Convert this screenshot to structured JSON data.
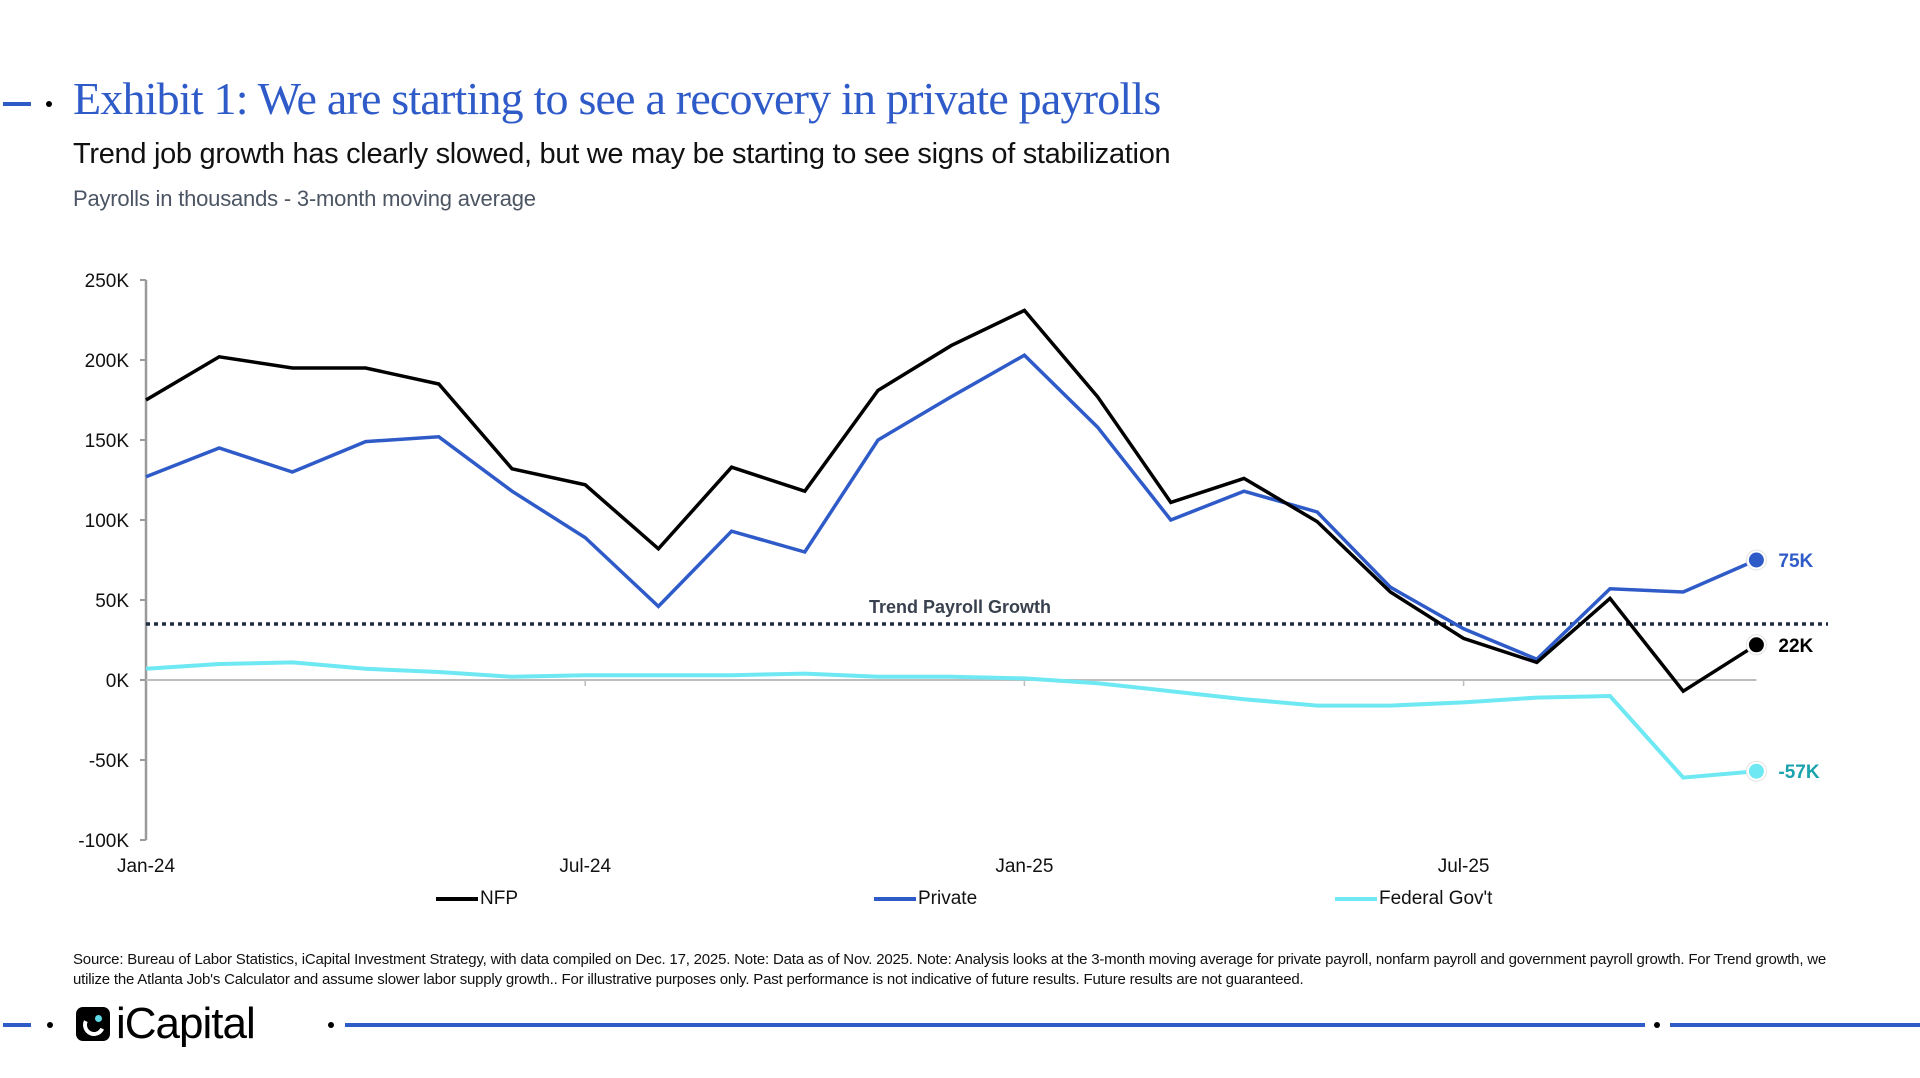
{
  "header": {
    "title": "Exhibit 1: We are starting to see a recovery in private payrolls",
    "subtitle": "Trend job growth has clearly slowed, but we may be starting to see signs of stabilization",
    "unit_note": "Payrolls in thousands - 3-month moving average"
  },
  "colors": {
    "accent": "#2f5bc9",
    "nfp": "#000000",
    "private": "#2f5bc9",
    "federal": "#6ee8f2",
    "federal_label": "#1aa3ad",
    "trend": "#1f2a44",
    "axis": "#9a9a9a"
  },
  "chart_data": {
    "type": "line",
    "title": "Exhibit 1: We are starting to see a recovery in private payrolls",
    "subtitle": "Trend job growth has clearly slowed, but we may be starting to see signs of stabilization",
    "xlabel": "",
    "ylabel": "Payrolls in thousands - 3-month moving average",
    "ylim": [
      -100,
      250
    ],
    "yticks": [
      250,
      200,
      150,
      100,
      50,
      0,
      -50,
      -100
    ],
    "ytick_labels": [
      "250K",
      "200K",
      "150K",
      "100K",
      "50K",
      "0K",
      "-50K",
      "-100K"
    ],
    "x": [
      "Jan-24",
      "Feb-24",
      "Mar-24",
      "Apr-24",
      "May-24",
      "Jun-24",
      "Jul-24",
      "Aug-24",
      "Sep-24",
      "Oct-24",
      "Nov-24",
      "Dec-24",
      "Jan-25",
      "Feb-25",
      "Mar-25",
      "Apr-25",
      "May-25",
      "Jun-25",
      "Jul-25",
      "Aug-25",
      "Sep-25",
      "Oct-25",
      "Nov-25"
    ],
    "xtick_labels": [
      {
        "index": 0,
        "label": "Jan-24"
      },
      {
        "index": 6,
        "label": "Jul-24"
      },
      {
        "index": 12,
        "label": "Jan-25"
      },
      {
        "index": 18,
        "label": "Jul-25"
      }
    ],
    "series": [
      {
        "name": "NFP",
        "color": "#000000",
        "values": [
          175,
          202,
          195,
          195,
          185,
          132,
          122,
          82,
          133,
          118,
          181,
          209,
          231,
          177,
          111,
          126,
          99,
          55,
          26,
          11,
          51,
          -7,
          22
        ],
        "end_label": "22K",
        "end_label_color": "#000000"
      },
      {
        "name": "Private",
        "color": "#2f5bc9",
        "values": [
          127,
          145,
          130,
          149,
          152,
          118,
          89,
          46,
          93,
          80,
          150,
          177,
          203,
          158,
          100,
          118,
          105,
          58,
          32,
          13,
          57,
          55,
          75
        ],
        "end_label": "75K",
        "end_label_color": "#2f5bc9"
      },
      {
        "name": "Federal Gov't",
        "color": "#6ee8f2",
        "values": [
          7,
          10,
          11,
          7,
          5,
          2,
          3,
          3,
          3,
          4,
          2,
          2,
          1,
          -2,
          -7,
          -12,
          -16,
          -16,
          -14,
          -11,
          -10,
          -61,
          -57
        ],
        "end_label": "-57K",
        "end_label_color": "#1aa3ad"
      }
    ],
    "reference_lines": [
      {
        "label": "Trend Payroll Growth",
        "value": 35,
        "style": "dotted"
      }
    ],
    "legend": [
      "NFP",
      "Private",
      "Federal Gov't"
    ],
    "legend_position": "bottom",
    "grid": false
  },
  "legend": {
    "items": [
      {
        "label": "NFP",
        "color": "#000000"
      },
      {
        "label": "Private",
        "color": "#2f5bc9"
      },
      {
        "label": "Federal Gov't",
        "color": "#6ee8f2"
      }
    ]
  },
  "footer": {
    "source": "Source: Bureau of Labor Statistics, iCapital Investment Strategy, with data compiled on Dec. 17, 2025. Note: Data as of Nov. 2025. Note: Analysis looks at the 3-month moving average for private payroll, nonfarm payroll and government payroll growth. For Trend growth, we utilize the Atlanta Job's Calculator and assume slower labor supply growth.. For illustrative purposes only. Past performance is not indicative of future results. Future results are not guaranteed.",
    "logo_text": "iCapital"
  }
}
